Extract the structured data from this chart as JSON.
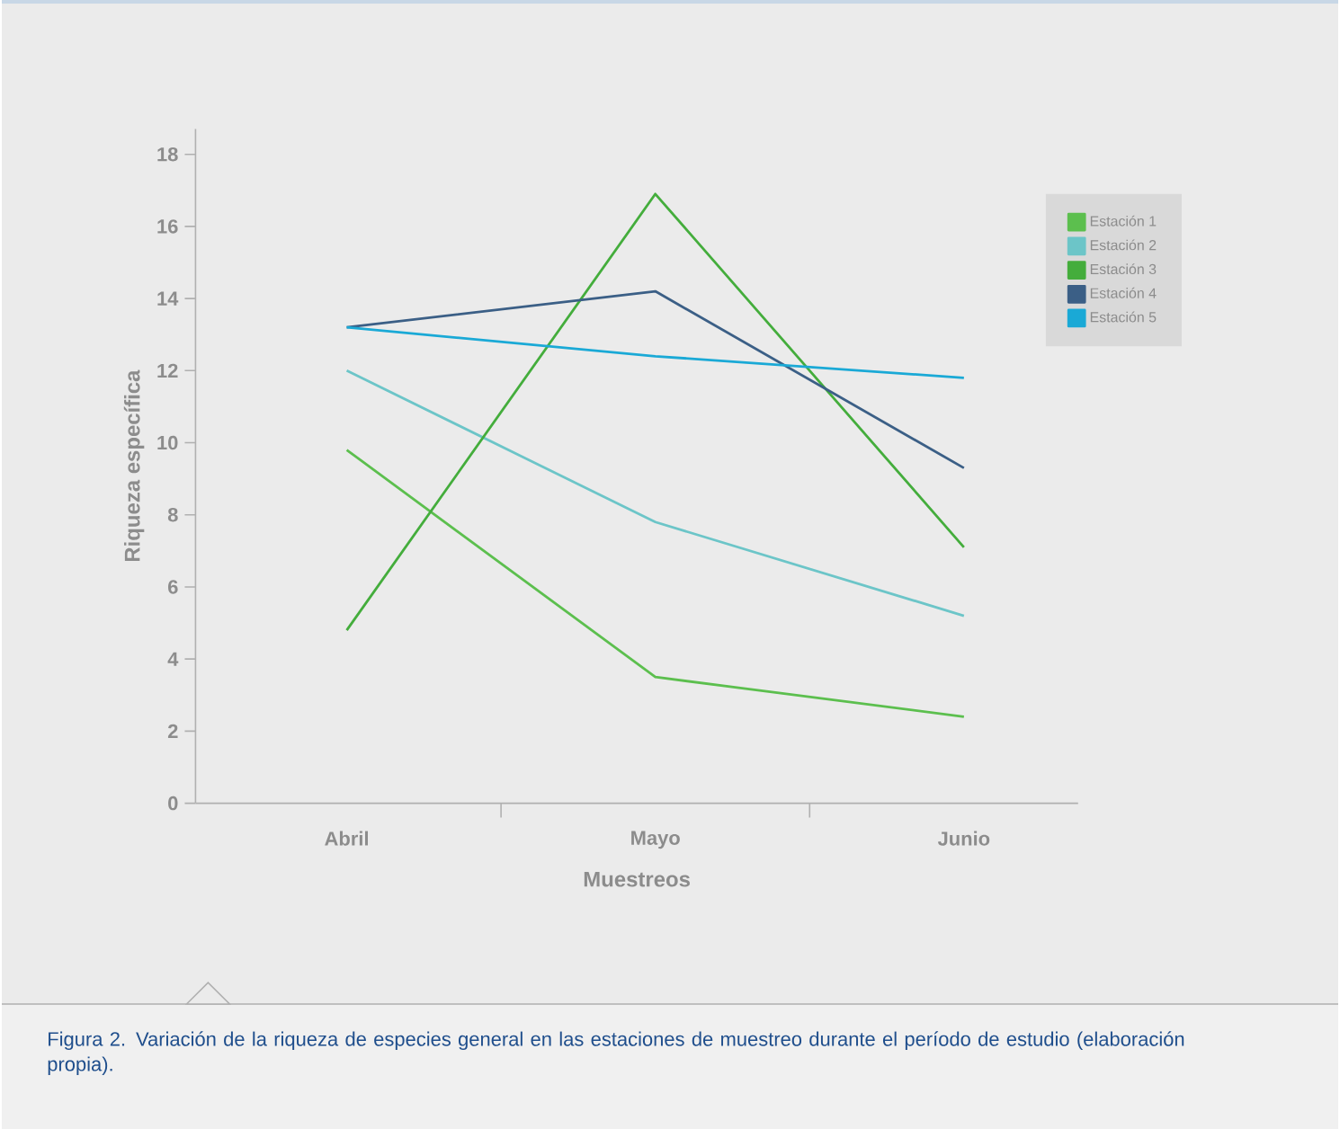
{
  "chart_data": {
    "type": "line",
    "xlabel": "Muestreos",
    "ylabel": "Riqueza específica",
    "categories": [
      "Abril",
      "Mayo",
      "Junio"
    ],
    "series": [
      {
        "name": "Estación 1",
        "color": "#5cbf4e",
        "values": [
          9.8,
          3.5,
          2.4
        ]
      },
      {
        "name": "Estación 2",
        "color": "#6cc5c8",
        "values": [
          12.0,
          7.8,
          5.2
        ]
      },
      {
        "name": "Estación 3",
        "color": "#44ad3c",
        "values": [
          4.8,
          16.9,
          7.1
        ]
      },
      {
        "name": "Estación 4",
        "color": "#3b5f86",
        "values": [
          13.2,
          14.2,
          9.3
        ]
      },
      {
        "name": "Estación 5",
        "color": "#1aa9d6",
        "values": [
          13.2,
          12.4,
          11.8
        ]
      }
    ],
    "ylim": [
      0,
      18.7
    ],
    "yticks": [
      0,
      2,
      4,
      6,
      8,
      10,
      12,
      14,
      16,
      18
    ],
    "legend": "top right",
    "grid": false,
    "marker": "none",
    "line_style": "solid",
    "annotations": [
      "Figura 2. Variación de la riqueza de especies general en las estaciones de muestreo durante el período de estudio (elaboración propia)."
    ]
  }
}
